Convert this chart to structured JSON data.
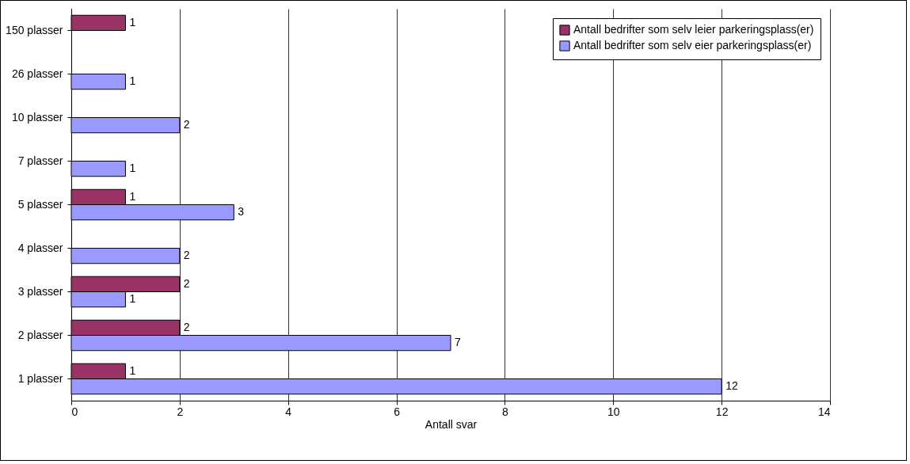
{
  "chart_data": {
    "type": "bar",
    "orientation": "horizontal",
    "xlabel": "Antall svar",
    "categories": [
      "150 plasser",
      "26 plasser",
      "10 plasser",
      "7 plasser",
      "5 plasser",
      "4 plasser",
      "3 plasser",
      "2 plasser",
      "1 plasser"
    ],
    "series": [
      {
        "name": "Antall bedrifter som selv leier parkeringsplass(er)",
        "color": "#993366",
        "values": [
          1,
          null,
          null,
          null,
          1,
          null,
          2,
          2,
          1
        ]
      },
      {
        "name": "Antall bedrifter som selv eier parkeringsplass(er)",
        "color": "#9999ff",
        "values": [
          null,
          1,
          2,
          1,
          3,
          2,
          1,
          7,
          12
        ]
      }
    ],
    "xlim": [
      0,
      14
    ],
    "xticks": [
      0,
      2,
      4,
      6,
      8,
      10,
      12,
      14
    ],
    "grid": "x",
    "legend": "top right",
    "data_labels": true
  }
}
